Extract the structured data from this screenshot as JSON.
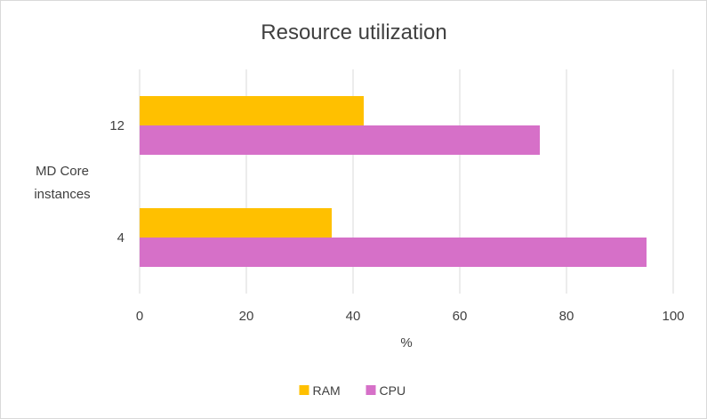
{
  "chart_data": {
    "type": "bar",
    "orientation": "horizontal",
    "title": "Resource utilization",
    "xlabel": "%",
    "ylabel": [
      "MD Core",
      "instances"
    ],
    "categories": [
      "12",
      "4"
    ],
    "series": [
      {
        "name": "RAM",
        "color": "#ffc000",
        "values": [
          42,
          36
        ]
      },
      {
        "name": "CPU",
        "color": "#d670c8",
        "values": [
          75,
          95
        ]
      }
    ],
    "xlim": [
      0,
      100
    ],
    "xticks": [
      "0",
      "20",
      "40",
      "60",
      "80",
      "100"
    ],
    "xtick_values": [
      0,
      20,
      40,
      60,
      80,
      100
    ],
    "grid": "vertical",
    "gridline_color": "#d9d9d9",
    "legend": "bottom"
  }
}
